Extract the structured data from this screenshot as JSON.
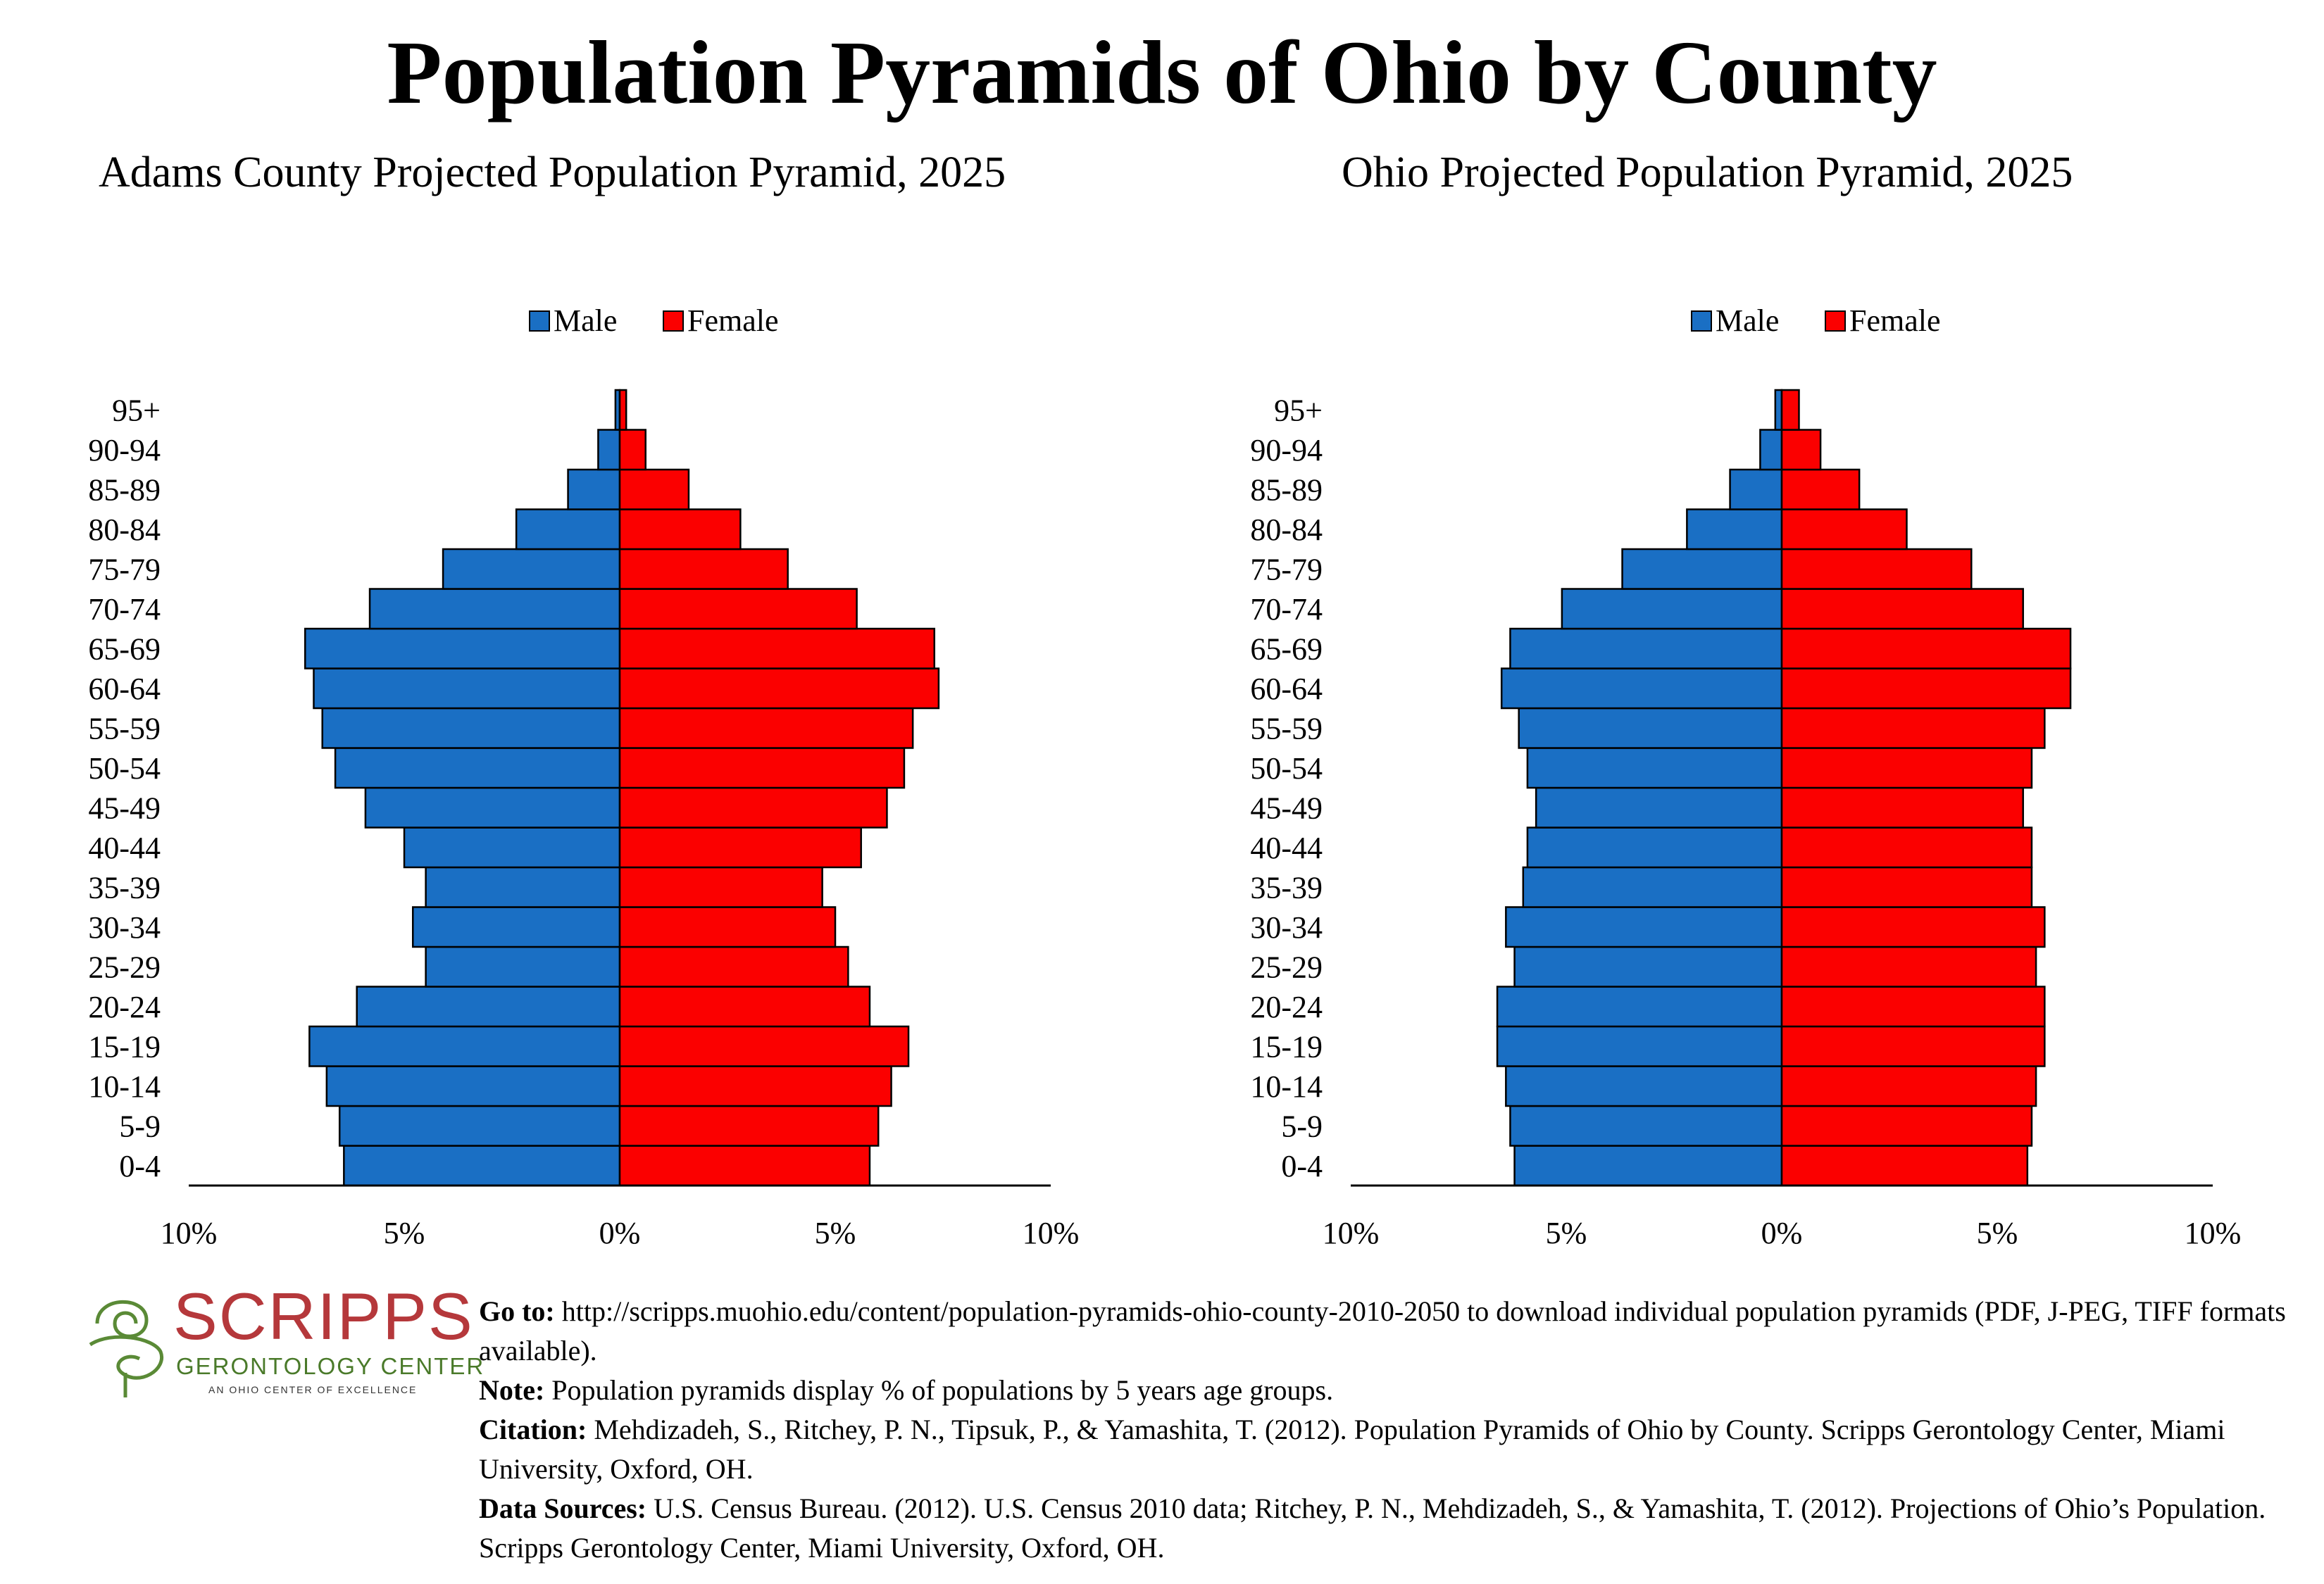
{
  "main_title": "Population Pyramids of Ohio by County",
  "colors": {
    "male": "#1a6fc4",
    "female": "#fb0000"
  },
  "logo": {
    "word": "SCRIPPS",
    "sub": "GERONTOLOGY CENTER",
    "tag": "AN OHIO CENTER OF EXCELLENCE"
  },
  "footer": {
    "goto_label": "Go to:",
    "goto_text": "http://scripps.muohio.edu/content/population-pyramids-ohio-county-2010-2050 to download individual population pyramids (PDF, J-PEG, TIFF formats available).",
    "note_label": "Note:",
    "note_text": "Population pyramids display % of populations by 5 years age groups.",
    "citation_label": "Citation:",
    "citation_text": "Mehdizadeh, S., Ritchey, P. N., Tipsuk, P., & Yamashita, T. (2012). Population Pyramids of Ohio by County. Scripps Gerontology Center, Miami University, Oxford, OH.",
    "sources_label": "Data Sources:",
    "sources_text": "U.S. Census Bureau. (2012). U.S. Census 2010 data; Ritchey, P. N., Mehdizadeh, S., & Yamashita, T. (2012). Projections of Ohio’s Population. Scripps Gerontology Center, Miami University, Oxford, OH."
  },
  "chart_data": [
    {
      "type": "bar",
      "orientation": "horizontal-pyramid",
      "title": "Adams County Projected Population Pyramid, 2025",
      "categories": [
        "0-4",
        "5-9",
        "10-14",
        "15-19",
        "20-24",
        "25-29",
        "30-34",
        "35-39",
        "40-44",
        "45-49",
        "50-54",
        "55-59",
        "60-64",
        "65-69",
        "70-74",
        "75-79",
        "80-84",
        "85-89",
        "90-94",
        "95+"
      ],
      "series": [
        {
          "name": "Male",
          "values": [
            6.4,
            6.5,
            6.8,
            7.2,
            6.1,
            4.5,
            4.8,
            4.5,
            5.0,
            5.9,
            6.6,
            6.9,
            7.1,
            7.3,
            5.8,
            4.1,
            2.4,
            1.2,
            0.5,
            0.1
          ]
        },
        {
          "name": "Female",
          "values": [
            5.8,
            6.0,
            6.3,
            6.7,
            5.8,
            5.3,
            5.0,
            4.7,
            5.6,
            6.2,
            6.6,
            6.8,
            7.4,
            7.3,
            5.5,
            3.9,
            2.8,
            1.6,
            0.6,
            0.15
          ]
        }
      ],
      "xlim": [
        -10,
        10
      ],
      "tick_labels": [
        "10%",
        "5%",
        "0%",
        "5%",
        "10%"
      ],
      "legend": "top-center"
    },
    {
      "type": "bar",
      "orientation": "horizontal-pyramid",
      "title": "Ohio Projected Population Pyramid, 2025",
      "categories": [
        "0-4",
        "5-9",
        "10-14",
        "15-19",
        "20-24",
        "25-29",
        "30-34",
        "35-39",
        "40-44",
        "45-49",
        "50-54",
        "55-59",
        "60-64",
        "65-69",
        "70-74",
        "75-79",
        "80-84",
        "85-89",
        "90-94",
        "95+"
      ],
      "series": [
        {
          "name": "Male",
          "values": [
            6.2,
            6.3,
            6.4,
            6.6,
            6.6,
            6.2,
            6.4,
            6.0,
            5.9,
            5.7,
            5.9,
            6.1,
            6.5,
            6.3,
            5.1,
            3.7,
            2.2,
            1.2,
            0.5,
            0.15
          ]
        },
        {
          "name": "Female",
          "values": [
            5.7,
            5.8,
            5.9,
            6.1,
            6.1,
            5.9,
            6.1,
            5.8,
            5.8,
            5.6,
            5.8,
            6.1,
            6.7,
            6.7,
            5.6,
            4.4,
            2.9,
            1.8,
            0.9,
            0.4
          ]
        }
      ],
      "xlim": [
        -10,
        10
      ],
      "tick_labels": [
        "10%",
        "5%",
        "0%",
        "5%",
        "10%"
      ],
      "legend": "top-center"
    }
  ]
}
